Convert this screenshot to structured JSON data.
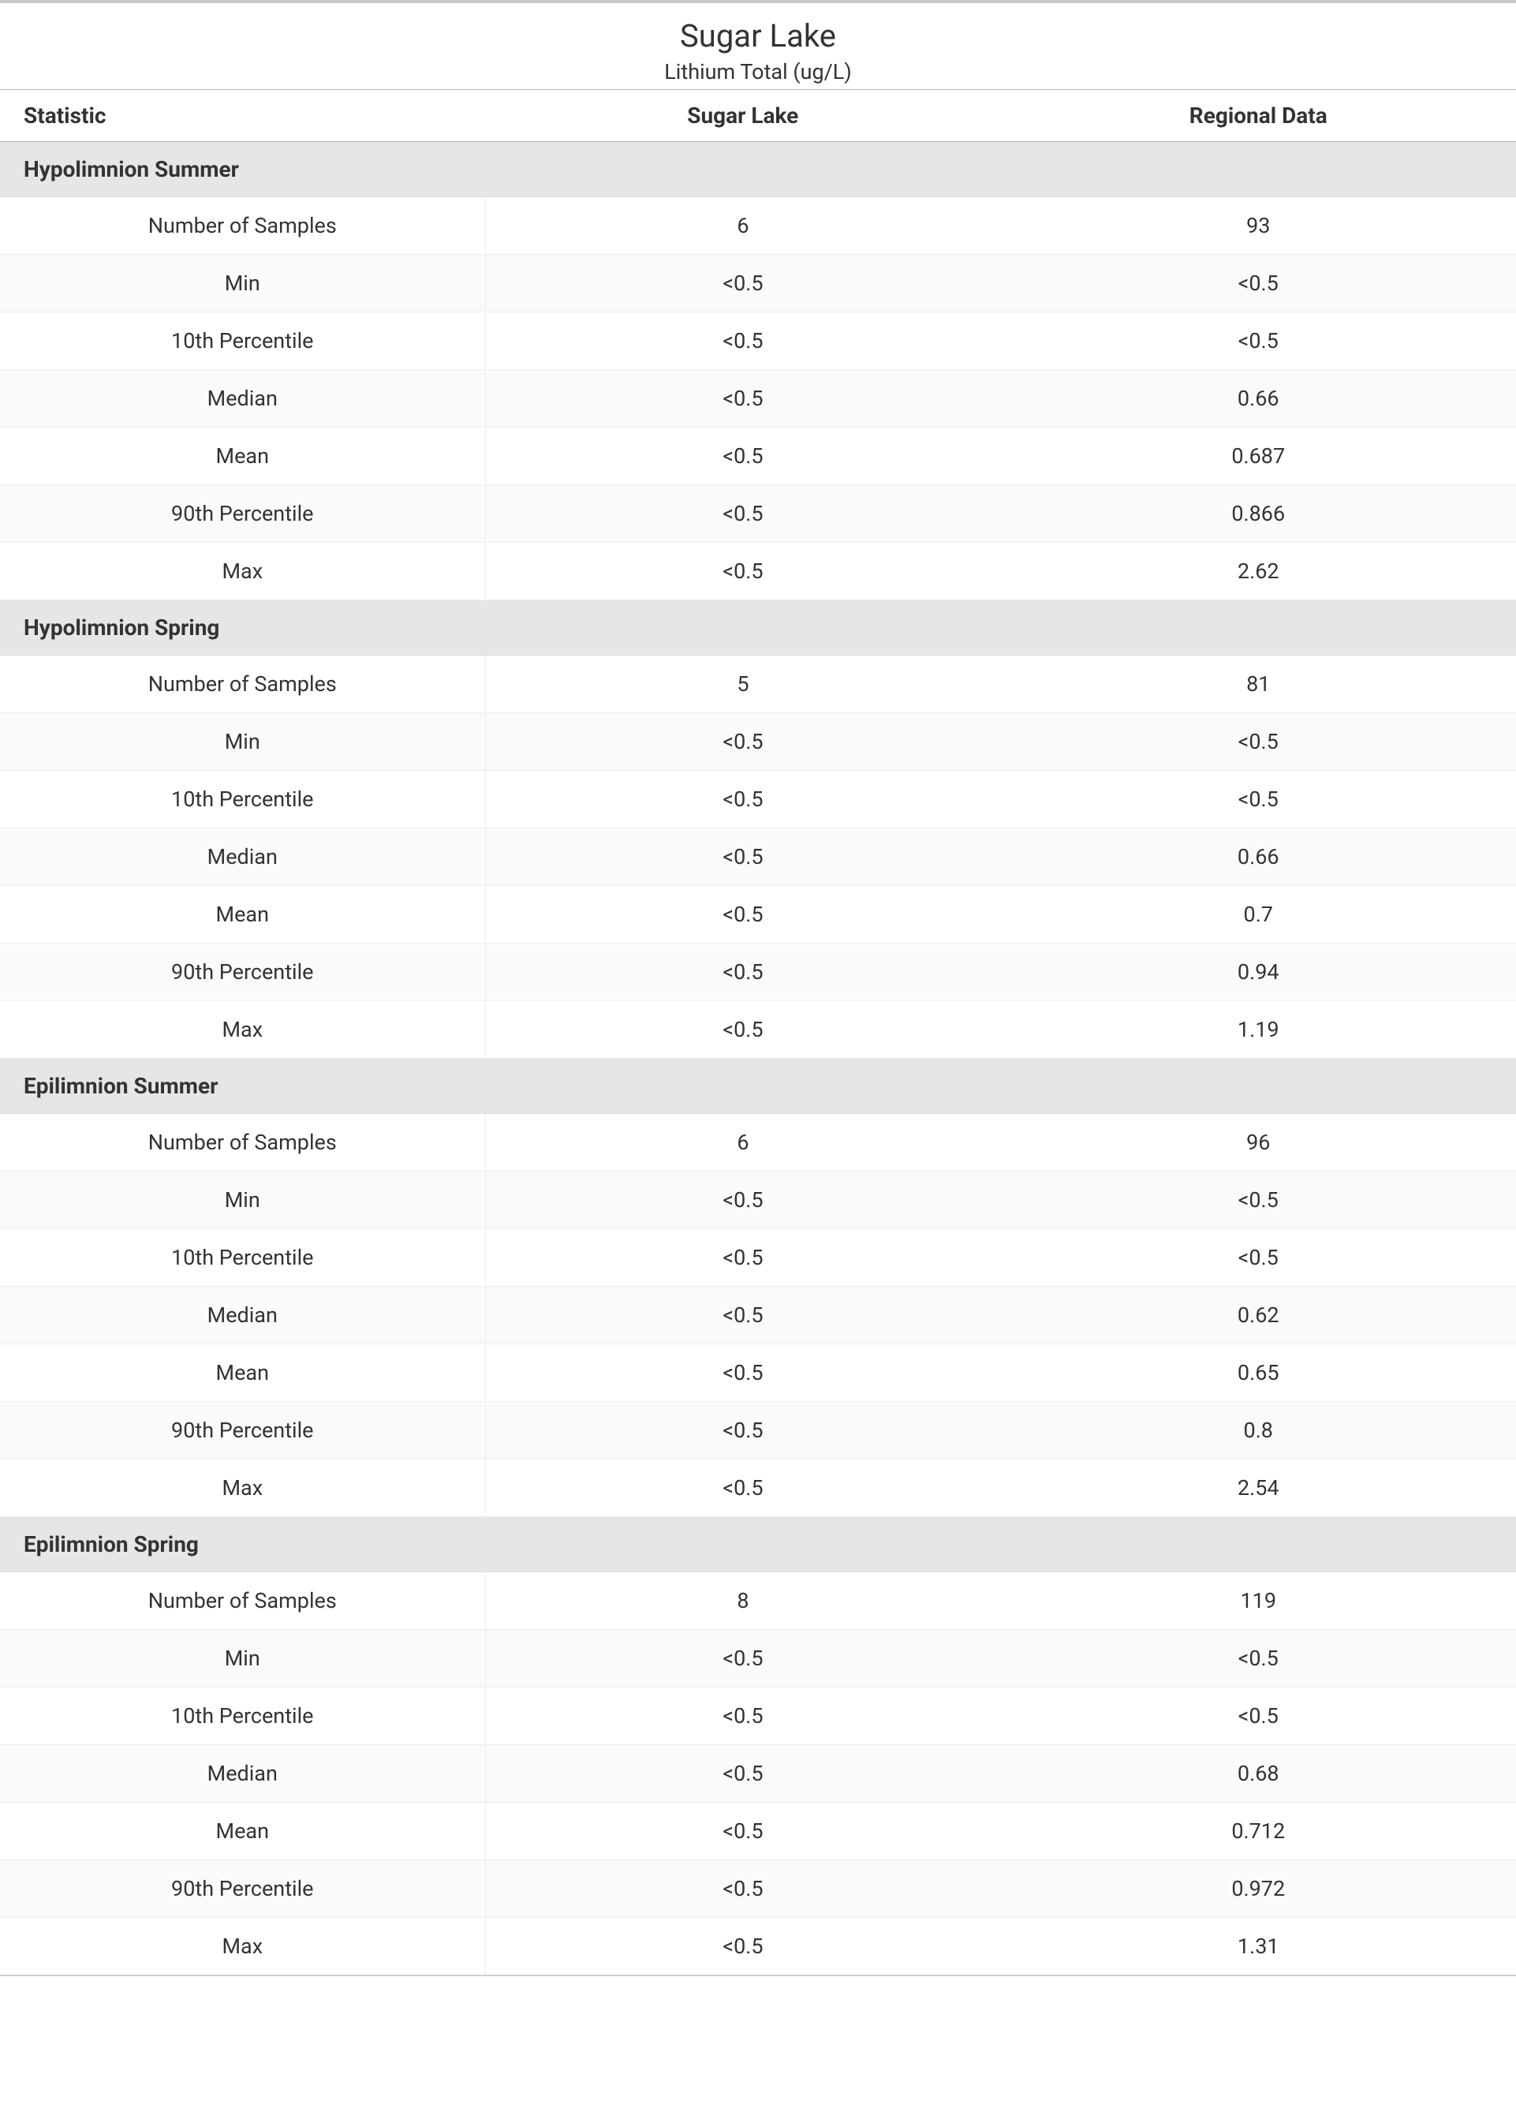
{
  "header": {
    "title": "Sugar Lake",
    "subtitle": "Lithium Total (ug/L)"
  },
  "columns": {
    "statistic": "Statistic",
    "col1": "Sugar Lake",
    "col2": "Regional Data"
  },
  "statLabels": {
    "num": "Number of Samples",
    "min": "Min",
    "p10": "10th Percentile",
    "median": "Median",
    "mean": "Mean",
    "p90": "90th Percentile",
    "max": "Max"
  },
  "sections": [
    {
      "title": "Hypolimnion Summer",
      "rows": {
        "num": {
          "v1": "6",
          "v2": "93"
        },
        "min": {
          "v1": "<0.5",
          "v2": "<0.5"
        },
        "p10": {
          "v1": "<0.5",
          "v2": "<0.5"
        },
        "median": {
          "v1": "<0.5",
          "v2": "0.66"
        },
        "mean": {
          "v1": "<0.5",
          "v2": "0.687"
        },
        "p90": {
          "v1": "<0.5",
          "v2": "0.866"
        },
        "max": {
          "v1": "<0.5",
          "v2": "2.62"
        }
      }
    },
    {
      "title": "Hypolimnion Spring",
      "rows": {
        "num": {
          "v1": "5",
          "v2": "81"
        },
        "min": {
          "v1": "<0.5",
          "v2": "<0.5"
        },
        "p10": {
          "v1": "<0.5",
          "v2": "<0.5"
        },
        "median": {
          "v1": "<0.5",
          "v2": "0.66"
        },
        "mean": {
          "v1": "<0.5",
          "v2": "0.7"
        },
        "p90": {
          "v1": "<0.5",
          "v2": "0.94"
        },
        "max": {
          "v1": "<0.5",
          "v2": "1.19"
        }
      }
    },
    {
      "title": "Epilimnion Summer",
      "rows": {
        "num": {
          "v1": "6",
          "v2": "96"
        },
        "min": {
          "v1": "<0.5",
          "v2": "<0.5"
        },
        "p10": {
          "v1": "<0.5",
          "v2": "<0.5"
        },
        "median": {
          "v1": "<0.5",
          "v2": "0.62"
        },
        "mean": {
          "v1": "<0.5",
          "v2": "0.65"
        },
        "p90": {
          "v1": "<0.5",
          "v2": "0.8"
        },
        "max": {
          "v1": "<0.5",
          "v2": "2.54"
        }
      }
    },
    {
      "title": "Epilimnion Spring",
      "rows": {
        "num": {
          "v1": "8",
          "v2": "119"
        },
        "min": {
          "v1": "<0.5",
          "v2": "<0.5"
        },
        "p10": {
          "v1": "<0.5",
          "v2": "<0.5"
        },
        "median": {
          "v1": "<0.5",
          "v2": "0.68"
        },
        "mean": {
          "v1": "<0.5",
          "v2": "0.712"
        },
        "p90": {
          "v1": "<0.5",
          "v2": "0.972"
        },
        "max": {
          "v1": "<0.5",
          "v2": "1.31"
        }
      }
    }
  ],
  "style": {
    "colors": {
      "topRule": "#c9c9c9",
      "headerRule": "#b5b5b5",
      "rowBorder": "#eeeeee",
      "sectionBg": "#e6e6e6",
      "altRowBg": "#fafafa",
      "text": "#333333",
      "bg": "#ffffff"
    },
    "fonts": {
      "title_pt": 40,
      "subtitle_pt": 27,
      "header_pt": 28,
      "body_pt": 27,
      "header_weight": 700,
      "section_weight": 700,
      "body_weight": 400
    },
    "columnWidths": [
      "32%",
      "34%",
      "34%"
    ],
    "statOrder": [
      "num",
      "min",
      "p10",
      "median",
      "mean",
      "p90",
      "max"
    ]
  }
}
